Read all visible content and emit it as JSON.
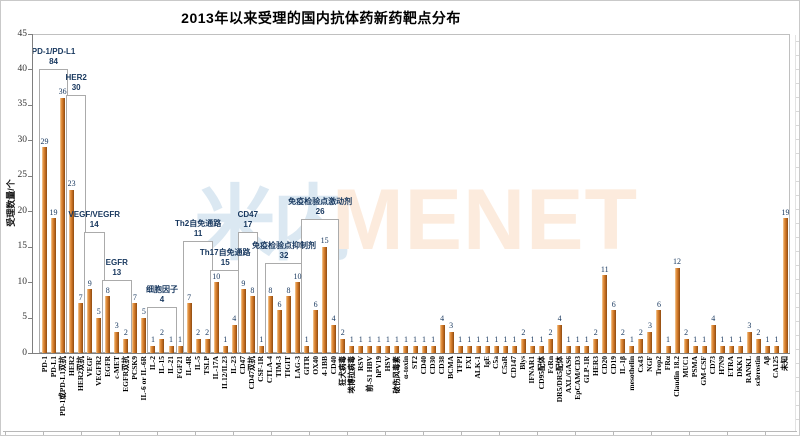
{
  "watermark": {
    "cn": "米内",
    "en": "MENET"
  },
  "colors": {
    "bar_gradient": [
      "#f5d0a4",
      "#e29140",
      "#cd7526",
      "#8d4a10"
    ],
    "box_border": "#ababab",
    "label_text": "#17375e",
    "axis_line": "#7f7f7f",
    "frame_line": "#c0c0c0",
    "watermark_cn": "#dbe8f2",
    "watermark_en": "#fcebdd"
  },
  "chart_data": {
    "type": "bar",
    "title": "2013年以来受理的国内抗体药新药靶点分布",
    "xlabel": "",
    "ylabel": "受理数量/个",
    "ylim": [
      0,
      45
    ],
    "ytick_interval": 5,
    "grid": false,
    "legend": "none",
    "categories": [
      "PD-1",
      "PD-L1",
      "PD-1或PD-L1双抗",
      "HER2",
      "HER2双抗",
      "VEGF",
      "VEGFR2",
      "EGFR",
      "c-MET",
      "EGFR双抗",
      "PCSK9",
      "IL-6 or IL-6R",
      "IL-2",
      "IL-15",
      "IL-21",
      "FGF21",
      "IL-4R",
      "IL-5",
      "TSLP",
      "IL-17A",
      "IL12/IL23",
      "IL-23",
      "CD47",
      "CD47双抗",
      "CSF-1R",
      "CTLA-4",
      "TIM-3",
      "TIGIT",
      "LAG-3",
      "GITR",
      "OX40",
      "4-1BB",
      "CD40",
      "狂犬病毒",
      "埃博拉病毒",
      "RSV",
      "前-S1 HBV",
      "hPV19",
      "HSV",
      "破伤风毒素",
      "α-toxin",
      "ST2",
      "CD40",
      "CD30",
      "CD38",
      "BCMA",
      "TFPI",
      "FXI",
      "ALK-1",
      "IgE",
      "C5a",
      "C5aR",
      "CD147",
      "Blys",
      "IFNAR1",
      "CD95配体",
      "FcRn",
      "DR5/DR5配体",
      "AXL/GAS6",
      "EpCAM/CD3",
      "GLP-1R",
      "HER3",
      "CD20",
      "CD19",
      "IL-1β",
      "mesothelin",
      "Cx43",
      "NGF",
      "Trop2",
      "FRα",
      "Claudin 18.2",
      "MUC1",
      "PSMA",
      "GM-CSF",
      "CD73",
      "H7N9",
      "ETRA",
      "DKK1",
      "RANKL",
      "sclerostin",
      "Aβ",
      "CA125",
      "未知"
    ],
    "values": [
      29,
      19,
      36,
      23,
      7,
      9,
      5,
      8,
      3,
      2,
      7,
      5,
      1,
      2,
      1,
      1,
      7,
      2,
      2,
      10,
      1,
      4,
      9,
      8,
      1,
      8,
      6,
      8,
      10,
      1,
      6,
      15,
      4,
      2,
      1,
      1,
      1,
      1,
      1,
      1,
      1,
      1,
      1,
      1,
      4,
      3,
      1,
      1,
      1,
      1,
      1,
      1,
      1,
      2,
      1,
      1,
      2,
      4,
      1,
      1,
      1,
      2,
      11,
      6,
      2,
      1,
      2,
      3,
      6,
      1,
      12,
      2,
      1,
      1,
      4,
      1,
      1,
      1,
      3,
      2,
      1,
      1,
      19
    ],
    "groups": [
      {
        "label": "PD-1/PD-L1",
        "total": 84,
        "start": 0,
        "end": 2,
        "box_top": 40
      },
      {
        "label": "HER2",
        "total": 30,
        "start": 3,
        "end": 4,
        "box_top": 36.4
      },
      {
        "label": "VEGF/VEGFR",
        "total": 14,
        "start": 5,
        "end": 6,
        "box_top": 17
      },
      {
        "label": "EGFR",
        "total": 13,
        "start": 7,
        "end": 9,
        "box_top": 10.3
      },
      {
        "label": "细胞因子",
        "total": 4,
        "start": 12,
        "end": 14,
        "box_top": 6.5
      },
      {
        "label": "Th2自免通路",
        "total": 11,
        "start": 16,
        "end": 18,
        "box_top": 15.8
      },
      {
        "label": "Th17自免通路",
        "total": 15,
        "start": 19,
        "end": 21,
        "box_top": 11.7
      },
      {
        "label": "CD47",
        "total": 17,
        "start": 22,
        "end": 23,
        "box_top": 17
      },
      {
        "label": "免疫检验点抑制剂",
        "total": 32,
        "start": 25,
        "end": 28,
        "box_top": 12.7
      },
      {
        "label": "免疫检验点激动剂",
        "total": 26,
        "start": 29,
        "end": 32,
        "box_top": 18.9
      }
    ]
  }
}
